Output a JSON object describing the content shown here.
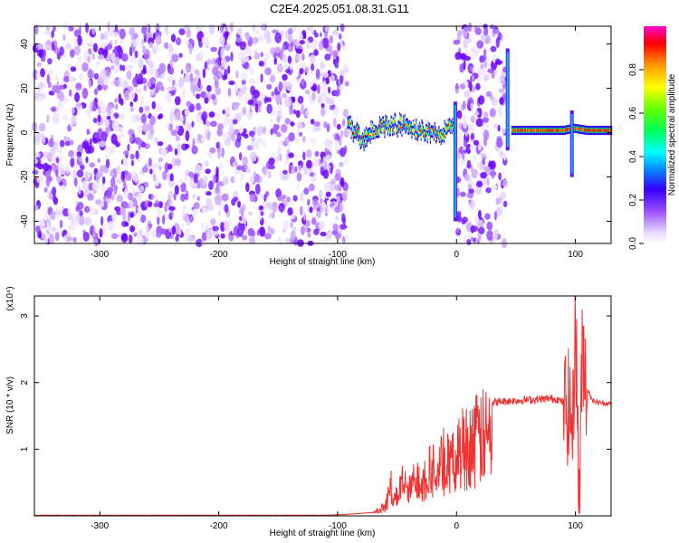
{
  "title": "C2E4.2025.051.08.31.G11",
  "chart_data": [
    {
      "type": "heatmap",
      "xlabel": "Height of straight line (km)",
      "ylabel": "Frequency (Hz)",
      "xlim": [
        -355,
        130
      ],
      "ylim": [
        -50,
        48
      ],
      "xticks": [
        -300,
        -200,
        -100,
        0,
        100
      ],
      "yticks": [
        -40,
        -20,
        0,
        20,
        40
      ],
      "colorbar": {
        "label": "Normalized spectral amplitude",
        "range": [
          0,
          1
        ],
        "ticks": [
          0.0,
          0.2,
          0.4,
          0.6,
          0.8
        ]
      },
      "noise_regions": [
        [
          -355,
          -92
        ],
        [
          0,
          41
        ]
      ],
      "signal_track": [
        {
          "x": -92,
          "y": 5
        },
        {
          "x": -85,
          "y": -1
        },
        {
          "x": -78,
          "y": -3
        },
        {
          "x": -70,
          "y": 1
        },
        {
          "x": -62,
          "y": 3
        },
        {
          "x": -52,
          "y": 4
        },
        {
          "x": -44,
          "y": 3
        },
        {
          "x": -36,
          "y": 1
        },
        {
          "x": -26,
          "y": 1
        },
        {
          "x": -16,
          "y": 0
        },
        {
          "x": -8,
          "y": 1
        },
        {
          "x": -2,
          "y": 3
        },
        {
          "x": 46,
          "y": 1
        },
        {
          "x": 60,
          "y": 1
        },
        {
          "x": 75,
          "y": 1
        },
        {
          "x": 90,
          "y": 1
        },
        {
          "x": 98,
          "y": 2
        },
        {
          "x": 110,
          "y": 1
        },
        {
          "x": 130,
          "y": 1
        }
      ],
      "spikes": [
        {
          "x": -1,
          "ymin": -40,
          "ymax": 14
        },
        {
          "x": 43,
          "ymin": -8,
          "ymax": 38
        },
        {
          "x": 97,
          "ymin": -20,
          "ymax": 10
        }
      ]
    },
    {
      "type": "line",
      "xlabel": "Height of straight line (km)",
      "ylabel": "SNR (10 * v/v)",
      "y_multiplier_label": "(x10⁴)",
      "xlim": [
        -355,
        130
      ],
      "ylim": [
        0,
        3.3
      ],
      "xticks": [
        -300,
        -200,
        -100,
        0,
        100
      ],
      "yticks": [
        1,
        2,
        3
      ],
      "series": [
        {
          "color": "#ee3333",
          "x": [
            -355,
            -200,
            -110,
            -95,
            -70,
            -60,
            -55,
            -50,
            -45,
            -40,
            -35,
            -30,
            -25,
            -20,
            -15,
            -10,
            -5,
            0,
            5,
            10,
            15,
            20,
            25,
            30,
            40,
            50,
            60,
            70,
            80,
            85,
            90,
            95,
            98,
            100,
            103,
            106,
            110,
            115,
            120,
            130
          ],
          "y": [
            0.01,
            0.01,
            0.01,
            0.02,
            0.05,
            0.2,
            0.6,
            0.4,
            0.7,
            0.5,
            0.8,
            0.75,
            0.9,
            1.0,
            0.95,
            1.2,
            1.0,
            1.3,
            1.45,
            1.55,
            1.6,
            1.65,
            1.68,
            1.7,
            1.72,
            1.73,
            1.74,
            1.75,
            1.76,
            1.75,
            1.7,
            1.6,
            1.3,
            3.2,
            0.2,
            2.6,
            1.9,
            1.72,
            1.7,
            1.68
          ]
        }
      ]
    }
  ]
}
